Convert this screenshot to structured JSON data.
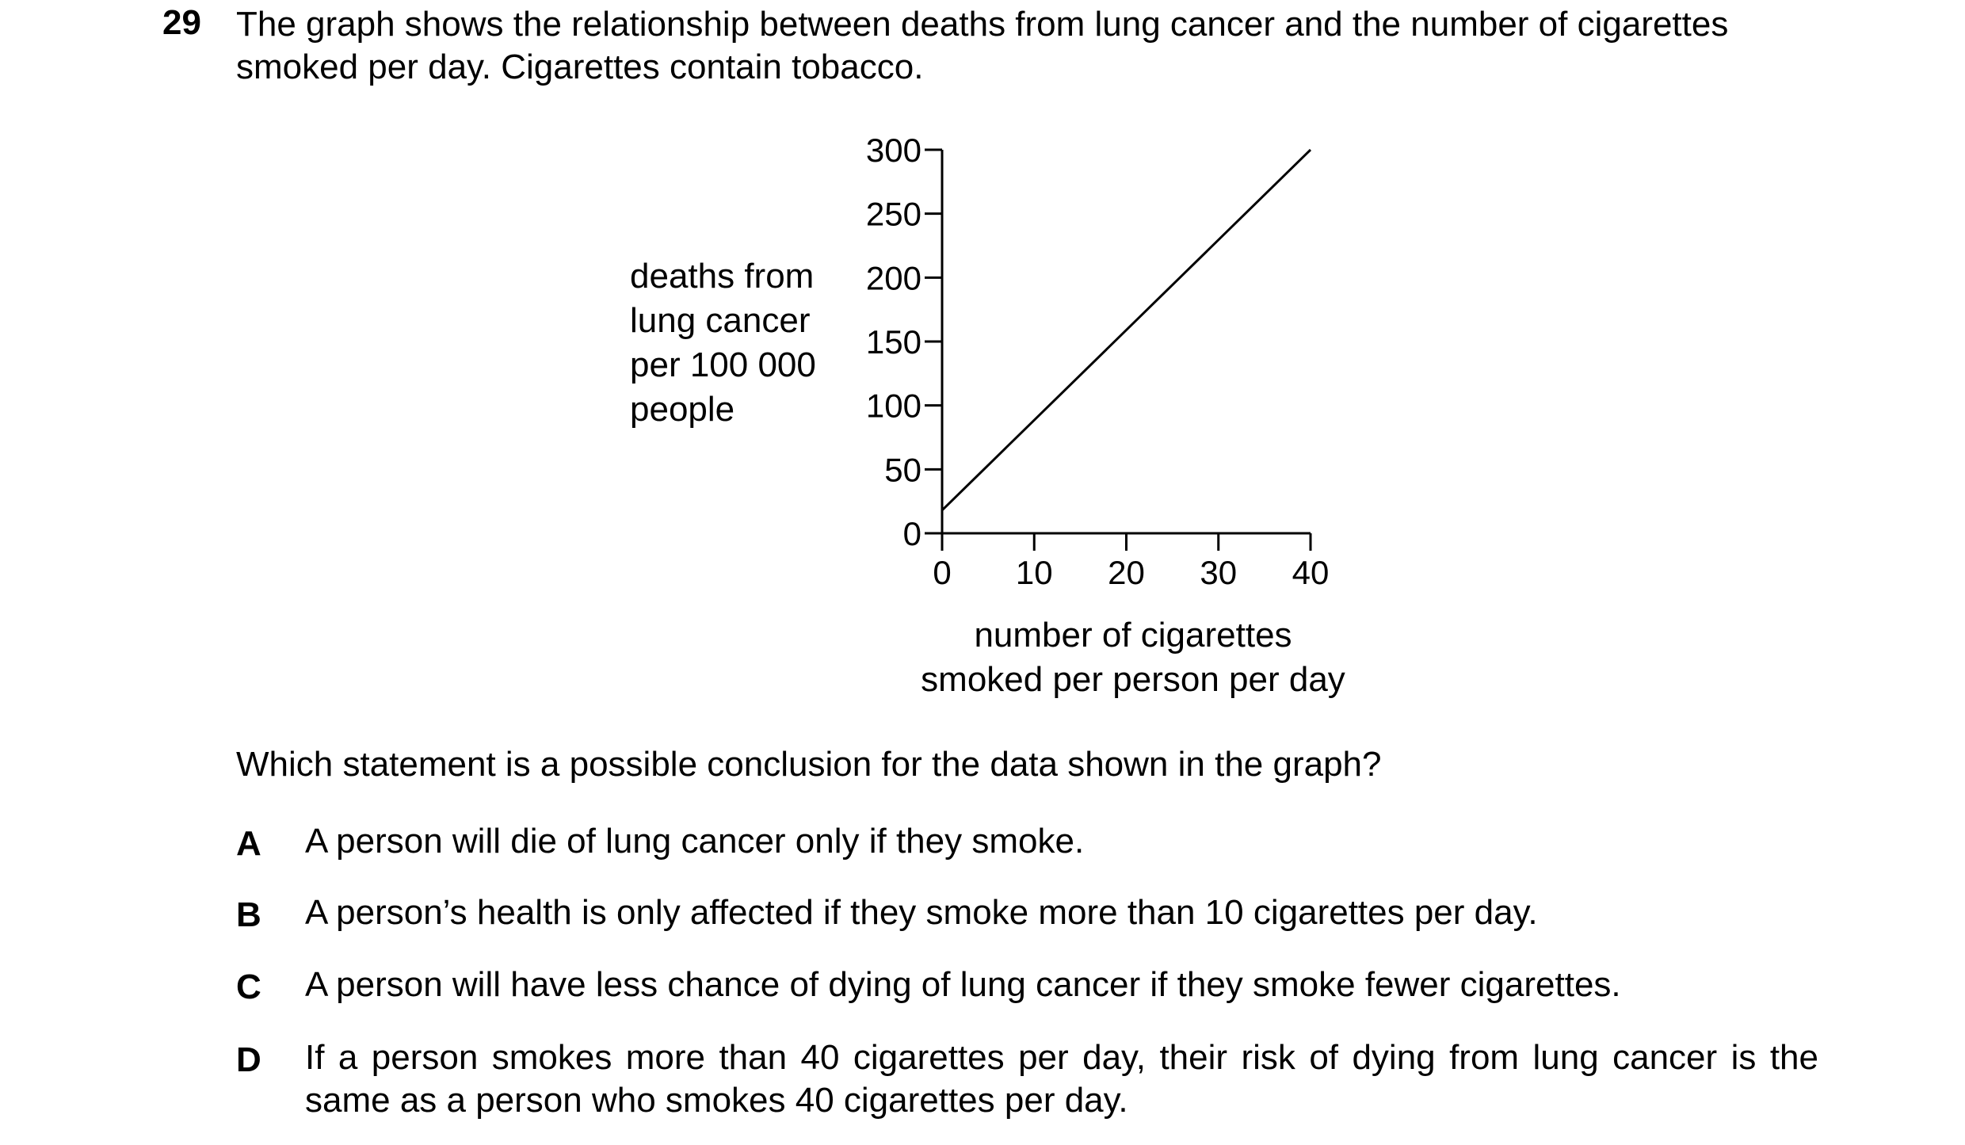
{
  "question": {
    "number": "29",
    "intro_line1": "The graph shows the relationship between deaths from lung cancer and the number of cigarettes",
    "intro_line2": "smoked per day. Cigarettes contain tobacco.",
    "prompt": "Which statement is a possible conclusion for the data shown in the graph?"
  },
  "chart_data": {
    "type": "line",
    "ylabel_lines": [
      "deaths from",
      "lung cancer",
      "per 100 000",
      "people"
    ],
    "xlabel_lines": [
      "number of cigarettes",
      "smoked per person per day"
    ],
    "x_ticks": [
      0,
      10,
      20,
      30,
      40
    ],
    "y_ticks": [
      0,
      50,
      100,
      150,
      200,
      250,
      300
    ],
    "xlim": [
      0,
      40
    ],
    "ylim": [
      0,
      300
    ],
    "grid": false,
    "series": [
      {
        "x": [
          0,
          40
        ],
        "y": [
          18,
          300
        ]
      }
    ]
  },
  "options": [
    {
      "letter": "A",
      "text": "A person will die of lung cancer only if they smoke."
    },
    {
      "letter": "B",
      "text": "A person’s health is only affected if they smoke more than 10 cigarettes per day."
    },
    {
      "letter": "C",
      "text": "A person will have less chance of dying of lung cancer if they smoke fewer cigarettes."
    },
    {
      "letter": "D",
      "text": "If a person smokes more than 40 cigarettes per day, their risk of dying from lung cancer is the same as a person who smokes 40 cigarettes per day."
    }
  ]
}
